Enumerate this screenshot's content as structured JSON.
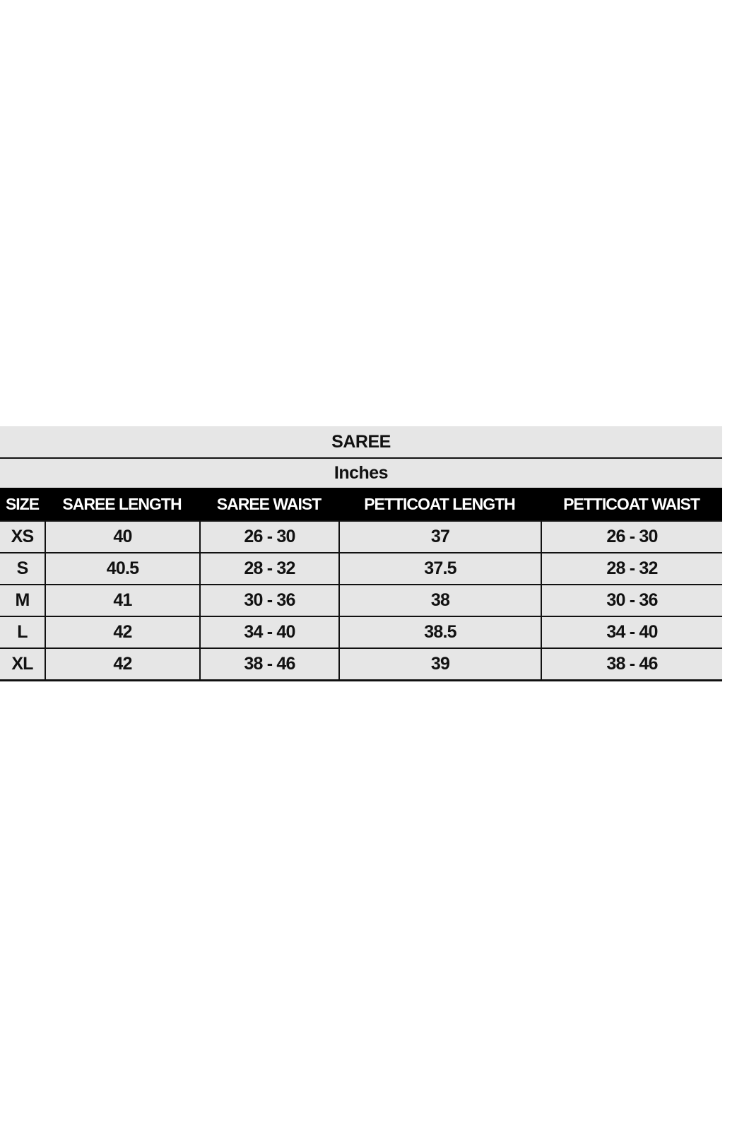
{
  "title": "SAREE",
  "unit": "Inches",
  "columns": [
    "SIZE",
    "SAREE LENGTH",
    "SAREE WAIST",
    "PETTICOAT LENGTH",
    "PETTICOAT WAIST"
  ],
  "rows": [
    [
      "XS",
      "40",
      "26 - 30",
      "37",
      "26 - 30"
    ],
    [
      "S",
      "40.5",
      "28 - 32",
      "37.5",
      "28 - 32"
    ],
    [
      "M",
      "41",
      "30 - 36",
      "38",
      "30 - 36"
    ],
    [
      "L",
      "42",
      "34 - 40",
      "38.5",
      "34 - 40"
    ],
    [
      "XL",
      "42",
      "38 - 46",
      "39",
      "38 - 46"
    ]
  ],
  "colors": {
    "band": "#e6e6e6",
    "header": "#000000",
    "border": "#111111"
  }
}
